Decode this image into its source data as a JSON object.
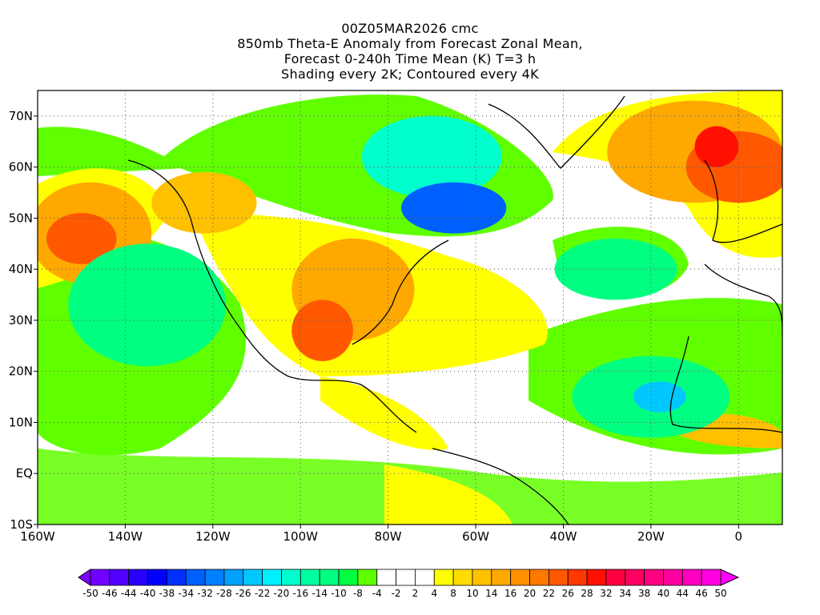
{
  "title": {
    "line1": "00Z05MAR2026 cmc",
    "line2": "850mb Theta-E Anomaly from Forecast Zonal Mean,",
    "line3": "Forecast 0-240h Time Mean (K) T=3 h",
    "line4": "Shading every 2K; Contoured every 4K"
  },
  "axes": {
    "lon_labels": [
      "160W",
      "140W",
      "120W",
      "100W",
      "80W",
      "60W",
      "40W",
      "20W",
      "0"
    ],
    "lon_values": [
      -160,
      -140,
      -120,
      -100,
      -80,
      -60,
      -40,
      -20,
      0
    ],
    "lon_range": [
      -160,
      10
    ],
    "lat_labels": [
      "10S",
      "EQ",
      "10N",
      "20N",
      "30N",
      "40N",
      "50N",
      "60N",
      "70N"
    ],
    "lat_values": [
      -10,
      0,
      10,
      20,
      30,
      40,
      50,
      60,
      70
    ],
    "lat_range": [
      -10,
      75
    ]
  },
  "colorbar": {
    "labels": [
      "-50",
      "-46",
      "-44",
      "-40",
      "-38",
      "-34",
      "-32",
      "-28",
      "-26",
      "-22",
      "-20",
      "-16",
      "-14",
      "-10",
      "-8",
      "-4",
      "-2",
      "2",
      "4",
      "8",
      "10",
      "14",
      "16",
      "20",
      "22",
      "26",
      "28",
      "32",
      "34",
      "38",
      "40",
      "44",
      "46",
      "50"
    ],
    "left_arrow_color": "#8000ff",
    "right_arrow_color": "#ff00ff",
    "colors": [
      "#7000ff",
      "#5000ff",
      "#2800ff",
      "#0000ff",
      "#0030ff",
      "#0060ff",
      "#0080ff",
      "#00a0ff",
      "#00c8ff",
      "#00f0ff",
      "#00ffcc",
      "#00ffa0",
      "#00ff80",
      "#00ff40",
      "#60ff00",
      "#ffffff",
      "#ffffff",
      "#ffffff",
      "#ffff00",
      "#ffdc00",
      "#ffc000",
      "#ffa800",
      "#ff9000",
      "#ff7800",
      "#ff5800",
      "#ff3800",
      "#ff1000",
      "#ff0040",
      "#ff0060",
      "#ff0080",
      "#ff00a0",
      "#ff00c0",
      "#ff00e0"
    ]
  },
  "anomaly_regions": [
    {
      "lon": -148,
      "lat": 47,
      "rx": 14,
      "ry": 10,
      "level": "#ffa800"
    },
    {
      "lon": -150,
      "lat": 46,
      "rx": 8,
      "ry": 5,
      "level": "#ff5800"
    },
    {
      "lon": -122,
      "lat": 53,
      "rx": 12,
      "ry": 6,
      "level": "#ffc000"
    },
    {
      "lon": -88,
      "lat": 36,
      "rx": 14,
      "ry": 10,
      "level": "#ffa800"
    },
    {
      "lon": -95,
      "lat": 28,
      "rx": 7,
      "ry": 6,
      "level": "#ff5800"
    },
    {
      "lon": -70,
      "lat": 62,
      "rx": 16,
      "ry": 8,
      "level": "#00ffcc"
    },
    {
      "lon": -65,
      "lat": 52,
      "rx": 12,
      "ry": 5,
      "level": "#0060ff"
    },
    {
      "lon": -28,
      "lat": 40,
      "rx": 14,
      "ry": 6,
      "level": "#00ff80"
    },
    {
      "lon": -135,
      "lat": 33,
      "rx": 18,
      "ry": 12,
      "level": "#00ff80"
    },
    {
      "lon": -20,
      "lat": 15,
      "rx": 18,
      "ry": 8,
      "level": "#00ff80"
    },
    {
      "lon": -18,
      "lat": 15,
      "rx": 6,
      "ry": 3,
      "level": "#00c8ff"
    },
    {
      "lon": -10,
      "lat": 63,
      "rx": 20,
      "ry": 10,
      "level": "#ffa800"
    },
    {
      "lon": 0,
      "lat": 60,
      "rx": 12,
      "ry": 7,
      "level": "#ff5800"
    },
    {
      "lon": -5,
      "lat": 64,
      "rx": 5,
      "ry": 4,
      "level": "#ff1000"
    }
  ]
}
